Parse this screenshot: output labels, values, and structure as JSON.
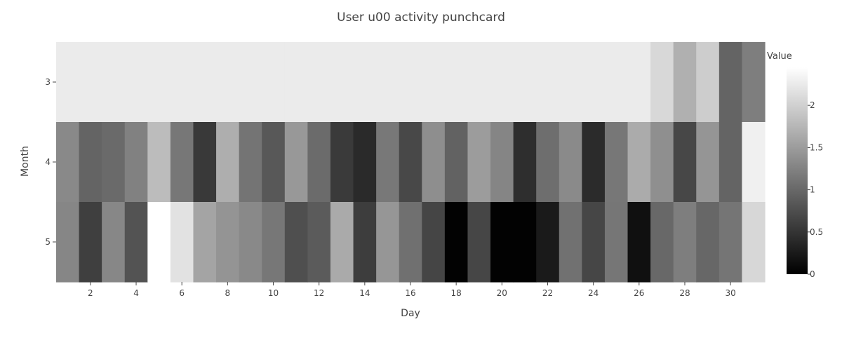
{
  "chart_data": {
    "type": "heatmap",
    "title": "User u00 activity punchcard",
    "xlabel": "Day",
    "ylabel": "Month",
    "colorbar_title": "Value",
    "x": [
      1,
      2,
      3,
      4,
      5,
      6,
      7,
      8,
      9,
      10,
      11,
      12,
      13,
      14,
      15,
      16,
      17,
      18,
      19,
      20,
      21,
      22,
      23,
      24,
      25,
      26,
      27,
      28,
      29,
      30,
      31
    ],
    "y": [
      3,
      4,
      5
    ],
    "x_ticks": [
      2,
      4,
      6,
      8,
      10,
      12,
      14,
      16,
      18,
      20,
      22,
      24,
      26,
      28,
      30
    ],
    "y_ticks": [
      3,
      4,
      5
    ],
    "colorscale": [
      [
        0,
        "#000000"
      ],
      [
        1,
        "#ffffff"
      ]
    ],
    "zmin": 0,
    "zmax": 2.45,
    "colorbar_ticks": [
      0,
      0.5,
      1,
      1.5,
      2
    ],
    "z": [
      [
        2.26,
        2.26,
        2.26,
        2.26,
        2.26,
        2.26,
        2.26,
        2.26,
        2.26,
        2.26,
        2.26,
        2.26,
        2.26,
        2.26,
        2.26,
        2.26,
        2.26,
        2.26,
        2.26,
        2.26,
        2.26,
        2.26,
        2.26,
        2.26,
        2.26,
        2.26,
        2.08,
        1.69,
        1.97,
        0.96,
        1.21
      ],
      [
        1.32,
        0.96,
        1.02,
        1.24,
        1.81,
        1.14,
        0.55,
        1.67,
        1.11,
        0.85,
        1.46,
        1.03,
        0.56,
        0.4,
        1.15,
        0.69,
        1.36,
        0.94,
        1.5,
        1.28,
        0.44,
        1.06,
        1.33,
        0.41,
        1.14,
        1.64,
        1.37,
        0.68,
        1.43,
        0.96,
        2.31
      ],
      [
        1.29,
        0.61,
        1.3,
        0.8,
        2.45,
        2.17,
        1.58,
        1.42,
        1.32,
        1.14,
        0.76,
        0.87,
        1.63,
        0.59,
        1.44,
        1.08,
        0.66,
        0.02,
        0.67,
        0.02,
        0.02,
        0.25,
        1.09,
        0.67,
        1.13,
        0.15,
        1.0,
        1.21,
        0.99,
        1.12,
        2.07
      ]
    ]
  }
}
